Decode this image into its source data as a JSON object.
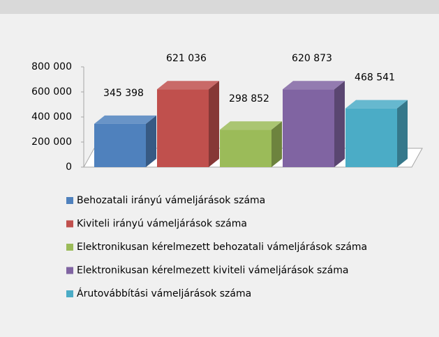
{
  "chart_data": {
    "type": "bar3d",
    "series": [
      {
        "name": "Behozatali irányú vámeljárások száma",
        "color": "#4f81bd",
        "values": [
          345398
        ],
        "value_labels": [
          "345 398"
        ]
      },
      {
        "name": "Kiviteli irányú vámeljárások száma",
        "color": "#c0504d",
        "values": [
          621036
        ],
        "value_labels": [
          "621 036"
        ]
      },
      {
        "name": "Elektronikusan kérelmezett behozatali vámeljárások száma",
        "color": "#9bbb59",
        "values": [
          298852
        ],
        "value_labels": [
          "298 852"
        ]
      },
      {
        "name": "Elektronikusan kérelmezett kiviteli vámeljárások száma",
        "color": "#8064a2",
        "values": [
          620873
        ],
        "value_labels": [
          "620 873"
        ]
      },
      {
        "name": "Árutovábbítási vámeljárások száma",
        "color": "#4bacc6",
        "values": [
          468541
        ],
        "value_labels": [
          "468 541"
        ]
      }
    ],
    "ylim": [
      0,
      800000
    ],
    "yticks": [
      0,
      {
        "value": 200000,
        "label": "200 000"
      },
      {
        "value": 400000,
        "label": "400 000"
      },
      {
        "value": 600000,
        "label": "600 000"
      },
      {
        "value": 800000,
        "label": "800 000"
      }
    ],
    "legend": "bottom"
  }
}
